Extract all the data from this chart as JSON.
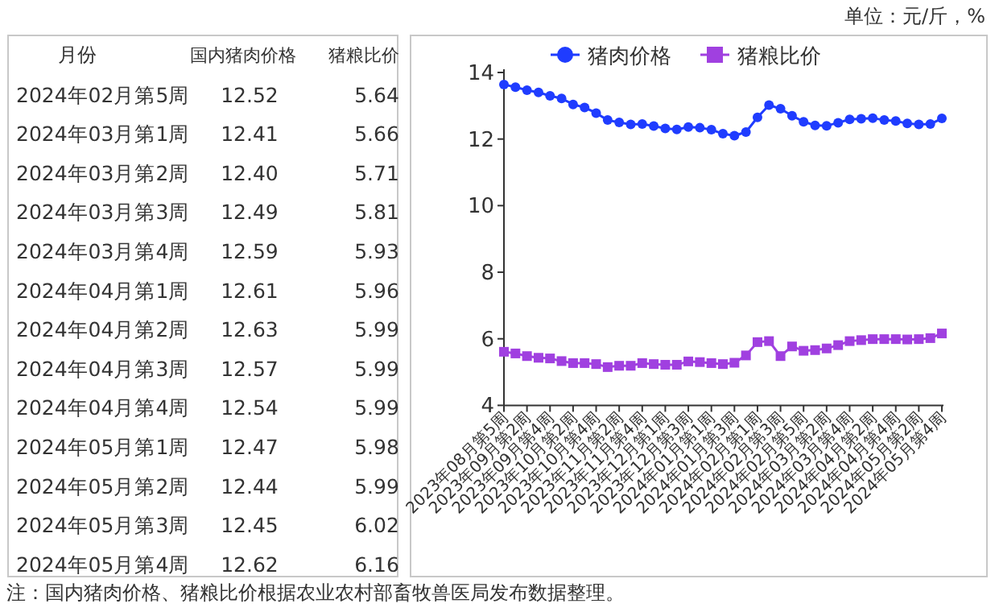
{
  "chart_data": [
    {
      "type": "other",
      "xlabel": "月份",
      "categories": [
        "2024年02月第5周",
        "2024年03月第1周",
        "2024年03月第2周",
        "2024年03月第3周",
        "2024年03月第4周",
        "2024年04月第1周",
        "2024年04月第2周",
        "2024年04月第3周",
        "2024年04月第4周",
        "2024年05月第1周",
        "2024年05月第2周",
        "2024年05月第3周",
        "2024年05月第4周"
      ],
      "series": [
        {
          "name": "国内猪肉价格",
          "values": [
            12.52,
            12.41,
            12.4,
            12.49,
            12.59,
            12.61,
            12.63,
            12.57,
            12.54,
            12.47,
            12.44,
            12.45,
            12.62
          ],
          "value_labels": [
            "12.52",
            "12.41",
            "12.40",
            "12.49",
            "12.59",
            "12.61",
            "12.63",
            "12.57",
            "12.54",
            "12.47",
            "12.44",
            "12.45",
            "12.62"
          ]
        },
        {
          "name": "猪粮比价",
          "values": [
            5.64,
            5.66,
            5.71,
            5.81,
            5.93,
            5.96,
            5.99,
            5.99,
            5.99,
            5.98,
            5.99,
            6.02,
            6.16
          ],
          "value_labels": [
            "5.64",
            "5.66",
            "5.71",
            "5.81",
            "5.93",
            "5.96",
            "5.99",
            "5.99",
            "5.99",
            "5.98",
            "5.99",
            "6.02",
            "6.16"
          ]
        }
      ]
    },
    {
      "type": "line",
      "categories": [
        "2023年08月第5周",
        null,
        "2023年09月第2周",
        null,
        "2023年09月第4周",
        null,
        "2023年10月第2周",
        null,
        "2023年10月第4周",
        null,
        "2023年11月第2周",
        null,
        "2023年11月第4周",
        null,
        "2023年12月第1周",
        null,
        "2023年12月第3周",
        null,
        "2024年01月第1周",
        null,
        "2024年01月第3周",
        null,
        "2024年02月第1周",
        null,
        "2024年02月第3周",
        null,
        "2024年02月第5周",
        null,
        "2024年03月第2周",
        null,
        "2024年03月第4周",
        null,
        "2024年04月第2周",
        null,
        "2024年04月第4周",
        null,
        "2024年05月第2周",
        null,
        "2024年05月第4周"
      ],
      "series": [
        {
          "name": "猪肉价格",
          "color": "#1f3cff",
          "marker": "circle",
          "values": [
            13.64,
            13.56,
            13.47,
            13.4,
            13.3,
            13.22,
            13.04,
            12.95,
            12.78,
            12.57,
            12.5,
            12.44,
            12.45,
            12.39,
            12.32,
            12.29,
            12.36,
            12.34,
            12.28,
            12.16,
            12.1,
            12.21,
            12.65,
            13.02,
            12.91,
            12.7,
            12.52,
            12.41,
            12.4,
            12.49,
            12.59,
            12.61,
            12.63,
            12.57,
            12.54,
            12.47,
            12.44,
            12.45,
            12.62
          ]
        },
        {
          "name": "猪粮比价",
          "color": "#a040e0",
          "marker": "square",
          "values": [
            5.61,
            5.56,
            5.48,
            5.43,
            5.41,
            5.33,
            5.27,
            5.27,
            5.24,
            5.15,
            5.19,
            5.19,
            5.27,
            5.24,
            5.22,
            5.22,
            5.32,
            5.3,
            5.27,
            5.24,
            5.28,
            5.5,
            5.9,
            5.93,
            5.48,
            5.77,
            5.64,
            5.66,
            5.71,
            5.81,
            5.93,
            5.96,
            5.99,
            5.99,
            5.99,
            5.98,
            5.99,
            6.02,
            6.16
          ]
        }
      ],
      "ylim": [
        4,
        14
      ],
      "yticks": [
        4,
        6,
        8,
        10,
        12,
        14
      ],
      "legend": "top",
      "annotations": [
        "单位：元/斤，%",
        "注：国内猪肉价格、猪粮比价根据农业农村部畜牧兽医局发布数据整理。"
      ]
    }
  ]
}
